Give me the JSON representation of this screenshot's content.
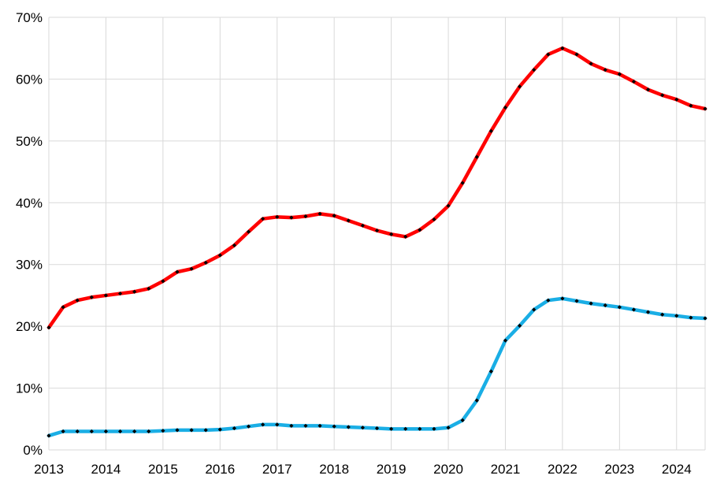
{
  "chart_data": {
    "type": "line",
    "title": "",
    "xlabel": "",
    "ylabel": "",
    "grid": true,
    "legend": "none",
    "xlim": [
      2013,
      2024.5
    ],
    "ylim": [
      0,
      70
    ],
    "x_ticks": [
      "2013",
      "2014",
      "2015",
      "2016",
      "2017",
      "2018",
      "2019",
      "2020",
      "2021",
      "2022",
      "2023",
      "2024"
    ],
    "y_ticks": [
      "0%",
      "10%",
      "20%",
      "30%",
      "40%",
      "50%",
      "60%",
      "70%"
    ],
    "y_unit": "%",
    "x": [
      2013.0,
      2013.25,
      2013.5,
      2013.75,
      2014.0,
      2014.25,
      2014.5,
      2014.75,
      2015.0,
      2015.25,
      2015.5,
      2015.75,
      2016.0,
      2016.25,
      2016.5,
      2016.75,
      2017.0,
      2017.25,
      2017.5,
      2017.75,
      2018.0,
      2018.25,
      2018.5,
      2018.75,
      2019.0,
      2019.25,
      2019.5,
      2019.75,
      2020.0,
      2020.25,
      2020.5,
      2020.75,
      2021.0,
      2021.25,
      2021.5,
      2021.75,
      2022.0,
      2022.25,
      2022.5,
      2022.75,
      2023.0,
      2023.25,
      2023.5,
      2023.75,
      2024.0,
      2024.25,
      2024.5
    ],
    "series": [
      {
        "color": "#ff0000",
        "values": [
          19.8,
          23.1,
          24.2,
          24.7,
          25.0,
          25.3,
          25.6,
          26.1,
          27.3,
          28.8,
          29.3,
          30.3,
          31.5,
          33.1,
          35.3,
          37.4,
          37.7,
          37.6,
          37.8,
          38.2,
          37.9,
          37.1,
          36.3,
          35.5,
          34.9,
          34.5,
          35.6,
          37.3,
          39.5,
          43.2,
          47.4,
          51.6,
          55.4,
          58.8,
          61.5,
          64.0,
          65.0,
          64.0,
          62.5,
          61.5,
          60.8,
          59.6,
          58.3,
          57.4,
          56.7,
          55.7,
          55.2
        ]
      },
      {
        "color": "#1aaee5",
        "values": [
          2.3,
          3.0,
          3.0,
          3.0,
          3.0,
          3.0,
          3.0,
          3.0,
          3.1,
          3.2,
          3.2,
          3.2,
          3.3,
          3.5,
          3.8,
          4.1,
          4.1,
          3.9,
          3.9,
          3.9,
          3.8,
          3.7,
          3.6,
          3.5,
          3.4,
          3.4,
          3.4,
          3.4,
          3.6,
          4.8,
          8.0,
          12.7,
          17.7,
          20.1,
          22.7,
          24.2,
          24.5,
          24.1,
          23.7,
          23.4,
          23.1,
          22.7,
          22.3,
          21.9,
          21.7,
          21.4,
          21.3
        ]
      }
    ]
  }
}
